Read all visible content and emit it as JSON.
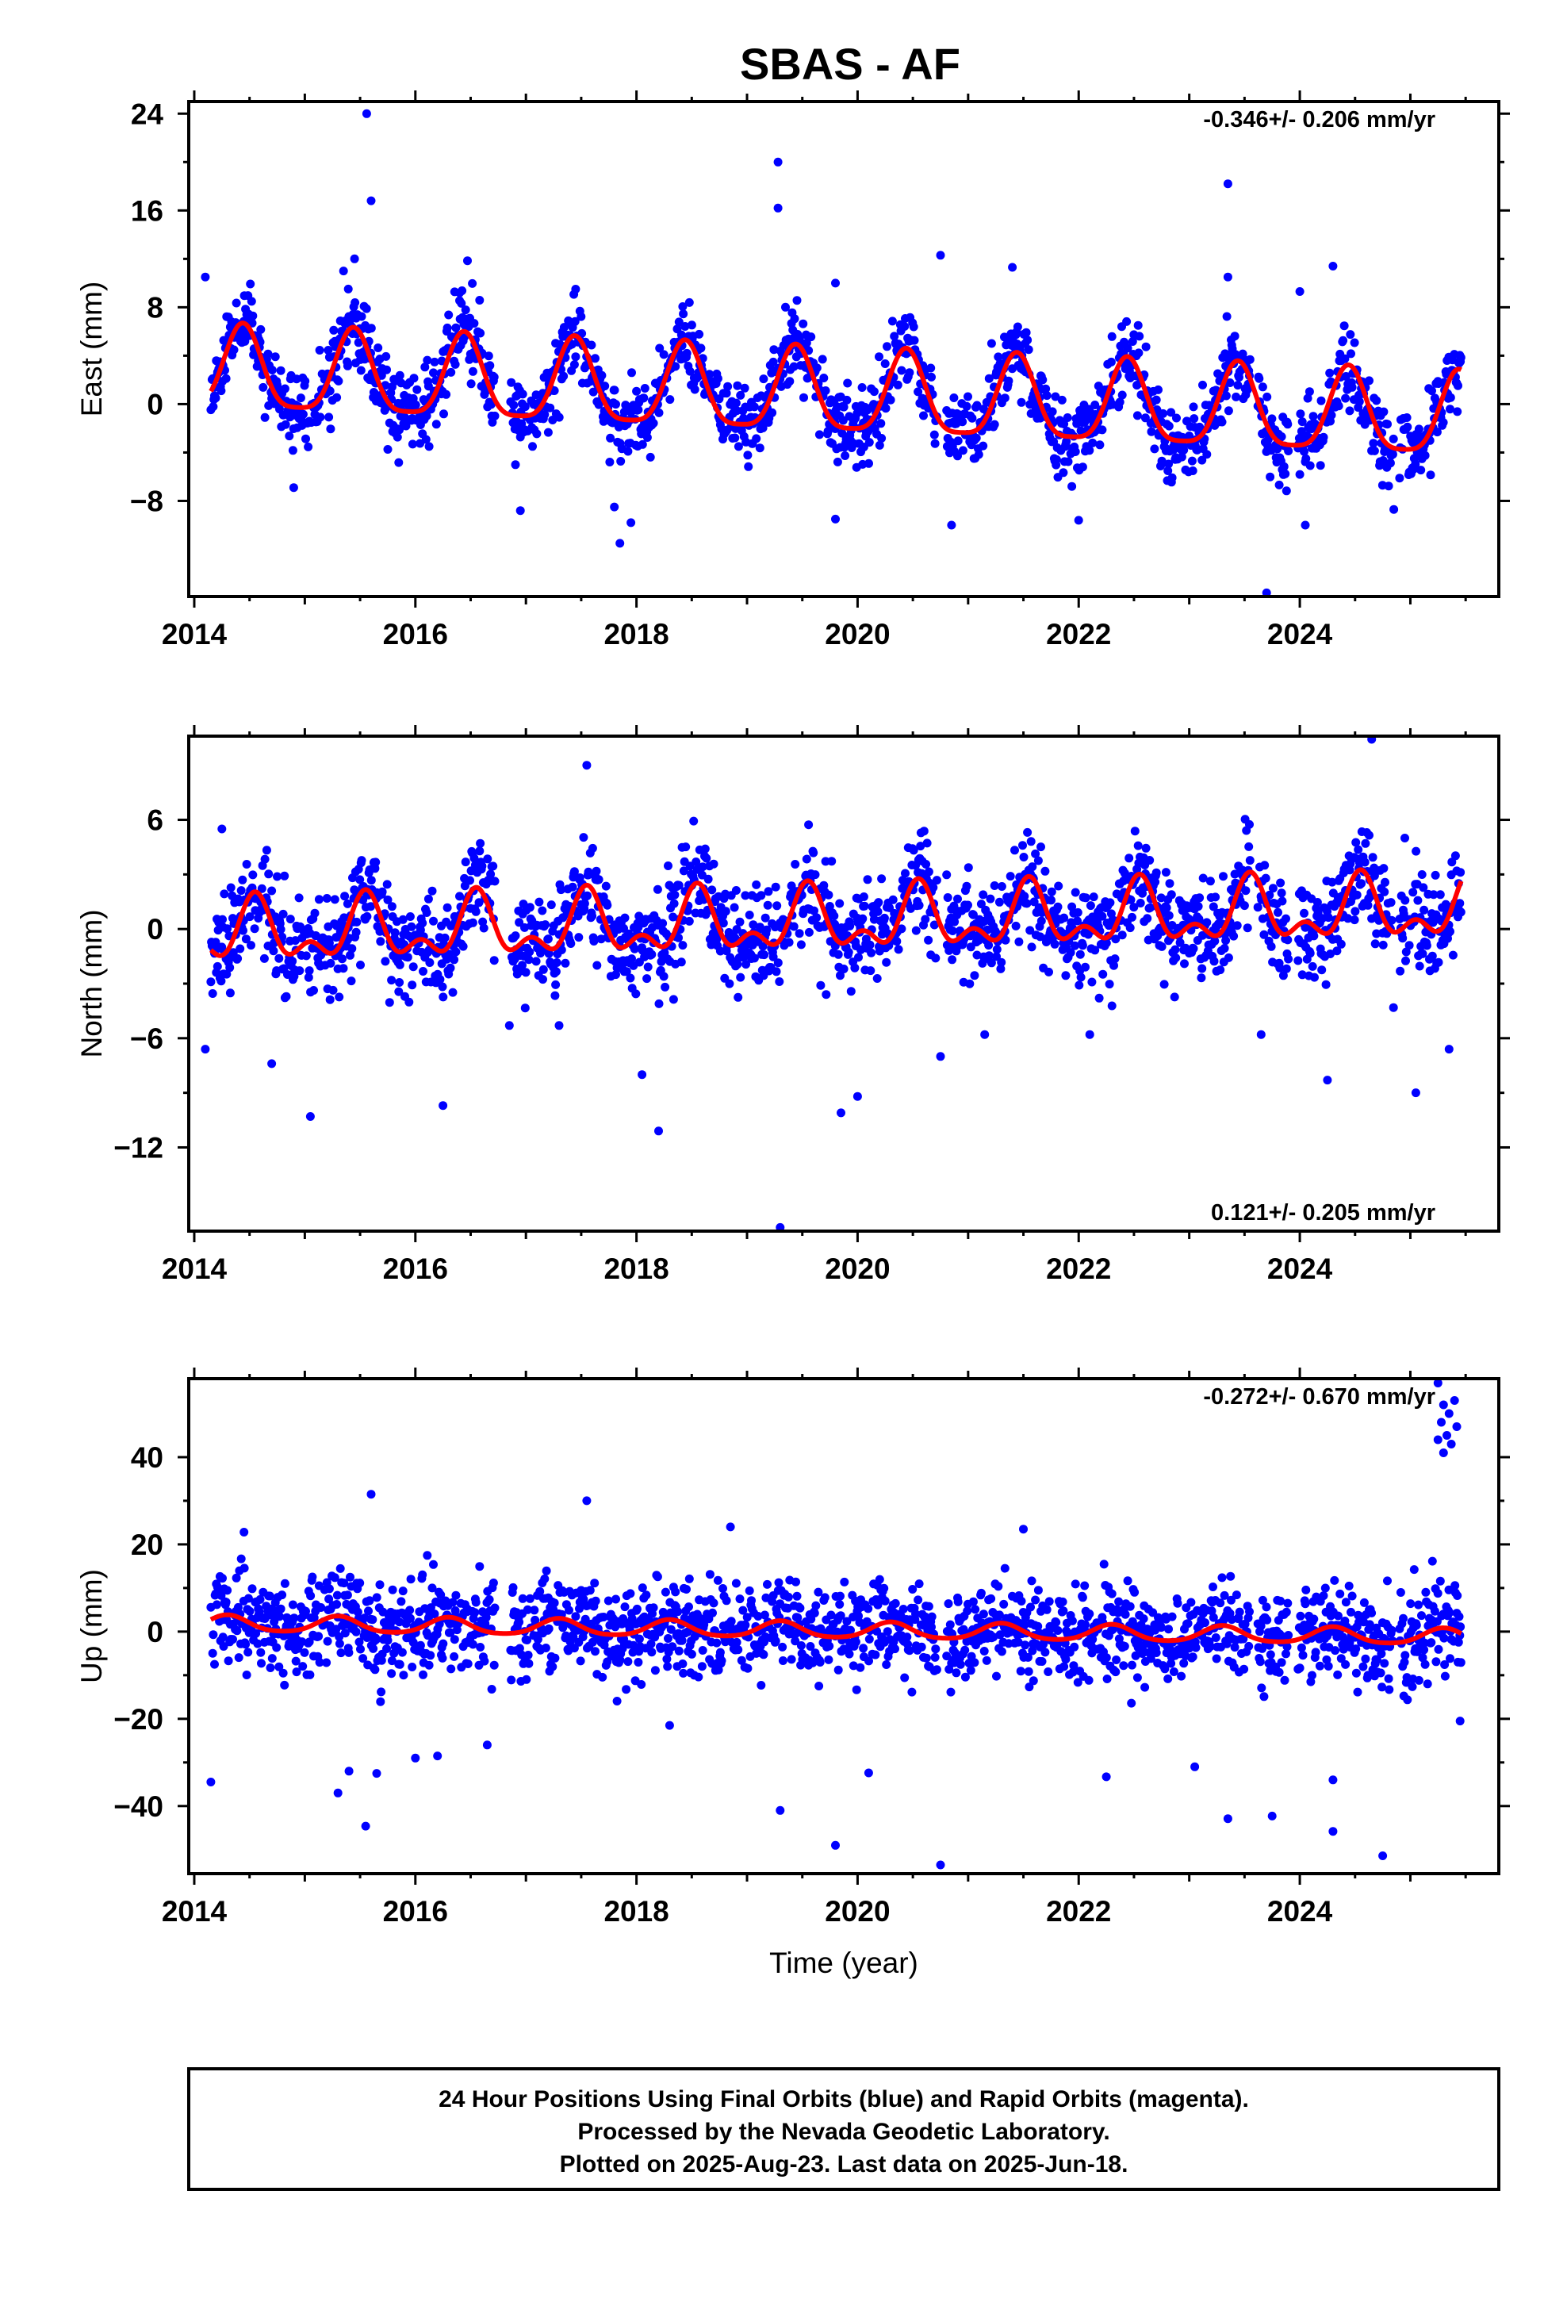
{
  "title": "SBAS - AF",
  "footer": {
    "line1": "24 Hour Positions Using Final Orbits (blue) and Rapid Orbits (magenta).",
    "line2": "Processed by the Nevada Geodetic Laboratory.",
    "line3": "Plotted on 2025-Aug-23. Last data on 2025-Jun-18."
  },
  "colors": {
    "final": "#0000ff",
    "rapid": "#ff00ff",
    "model": "#ff0000",
    "frame": "#000000"
  },
  "chart_data": [
    {
      "type": "scatter",
      "title": "",
      "xlabel": "",
      "ylabel": "East (mm)",
      "rate": "-0.346+/- 0.206 mm/yr",
      "rate_position": "top-right",
      "xlim": [
        2013.95,
        2025.8
      ],
      "ylim": [
        -15.9,
        25
      ],
      "xticks": [
        2014,
        2016,
        2018,
        2020,
        2022,
        2024
      ],
      "yticks": [
        24,
        16,
        8,
        0,
        -8
      ],
      "model": {
        "offset": 2.6,
        "rate": -0.346,
        "annual_amp": 3.4,
        "annual_peak": 2014.44,
        "semi_amp": 0.8,
        "semi_peak": 2014.44,
        "start": 2014.15,
        "end": 2025.46
      },
      "scatter": {
        "noise": 1.6,
        "step": 0.0055,
        "seed": 11
      },
      "outliers": [
        [
          2015.56,
          24
        ],
        [
          2015.6,
          16.8
        ],
        [
          2015.45,
          12
        ],
        [
          2014.1,
          10.5
        ],
        [
          2015.35,
          11
        ],
        [
          2019.28,
          20
        ],
        [
          2019.28,
          16.2
        ],
        [
          2019.8,
          10
        ],
        [
          2020.75,
          12.3
        ],
        [
          2021.4,
          11.3
        ],
        [
          2023.35,
          18.2
        ],
        [
          2023.35,
          10.5
        ],
        [
          2024.3,
          11.4
        ],
        [
          2024.0,
          9.3
        ],
        [
          2016.4,
          9.2
        ],
        [
          2017.45,
          9.5
        ],
        [
          2016.95,
          -8.8
        ],
        [
          2017.8,
          -8.5
        ],
        [
          2017.85,
          -11.5
        ],
        [
          2017.95,
          -9.8
        ],
        [
          2019.8,
          -9.5
        ],
        [
          2020.85,
          -10
        ],
        [
          2022.0,
          -9.6
        ],
        [
          2023.7,
          -15.6
        ],
        [
          2024.05,
          -10
        ],
        [
          2024.85,
          -8.7
        ],
        [
          2014.9,
          -6.9
        ]
      ]
    },
    {
      "type": "scatter",
      "title": "",
      "xlabel": "",
      "ylabel": "North (mm)",
      "rate": "0.121+/- 0.205 mm/yr",
      "rate_position": "bottom-right",
      "xlim": [
        2013.95,
        2025.8
      ],
      "ylim": [
        -16.6,
        10.6
      ],
      "xticks": [
        2014,
        2016,
        2018,
        2020,
        2022,
        2024
      ],
      "yticks": [
        6,
        0,
        -6,
        -12
      ],
      "model": {
        "offset": -0.3,
        "rate": 0.121,
        "annual_amp": 1.4,
        "annual_peak": 2014.55,
        "semi_amp": 0.9,
        "semi_peak": 2014.55,
        "start": 2014.15,
        "end": 2025.46
      },
      "scatter": {
        "noise": 1.35,
        "step": 0.0055,
        "seed": 23
      },
      "outliers": [
        [
          2017.55,
          9
        ],
        [
          2024.65,
          10.5
        ],
        [
          2014.25,
          5.5
        ],
        [
          2015.05,
          -10.3
        ],
        [
          2014.1,
          -6.6
        ],
        [
          2016.25,
          -9.7
        ],
        [
          2018.2,
          -11.1
        ],
        [
          2018.05,
          -8
        ],
        [
          2019.3,
          -16.4
        ],
        [
          2019.85,
          -10.1
        ],
        [
          2020.0,
          -9.2
        ],
        [
          2020.75,
          -7
        ],
        [
          2021.15,
          -5.8
        ],
        [
          2022.1,
          -5.8
        ],
        [
          2023.65,
          -5.8
        ],
        [
          2024.25,
          -8.3
        ],
        [
          2025.05,
          -9
        ],
        [
          2025.35,
          -6.6
        ],
        [
          2016.85,
          -5.3
        ],
        [
          2014.7,
          -7.4
        ],
        [
          2017.3,
          -5.3
        ],
        [
          2024.95,
          5
        ]
      ]
    },
    {
      "type": "scatter",
      "title": "",
      "xlabel": "Time (year)",
      "ylabel": "Up (mm)",
      "rate": "-0.272+/- 0.670 mm/yr",
      "rate_position": "top-right",
      "xlim": [
        2013.95,
        2025.8
      ],
      "ylim": [
        -55.5,
        58
      ],
      "xticks": [
        2014,
        2016,
        2018,
        2020,
        2022,
        2024
      ],
      "yticks": [
        40,
        20,
        0,
        -20,
        -40
      ],
      "model": {
        "offset": 1.8,
        "rate": -0.272,
        "annual_amp": 1.8,
        "annual_peak": 2014.3,
        "semi_amp": 0.3,
        "semi_peak": 2014.3,
        "start": 2014.15,
        "end": 2025.46
      },
      "scatter": {
        "noise": 5.2,
        "step": 0.0055,
        "seed": 37
      },
      "outliers": [
        [
          2015.6,
          31.5
        ],
        [
          2017.55,
          30
        ],
        [
          2014.15,
          -34.5
        ],
        [
          2015.3,
          -37
        ],
        [
          2015.4,
          -32
        ],
        [
          2015.55,
          -44.6
        ],
        [
          2015.65,
          -32.5
        ],
        [
          2016.0,
          -29
        ],
        [
          2016.2,
          -28.5
        ],
        [
          2016.65,
          -26
        ],
        [
          2019.3,
          -41
        ],
        [
          2019.8,
          -49
        ],
        [
          2020.1,
          -32.4
        ],
        [
          2020.75,
          -53.5
        ],
        [
          2022.25,
          -33.3
        ],
        [
          2023.05,
          -31
        ],
        [
          2023.35,
          -42.9
        ],
        [
          2023.75,
          -42.3
        ],
        [
          2024.3,
          -45.8
        ],
        [
          2024.75,
          -51.4
        ],
        [
          2024.3,
          -34
        ],
        [
          2018.3,
          -21.5
        ],
        [
          2025.45,
          -20.5
        ],
        [
          2018.85,
          24
        ],
        [
          2021.5,
          23.5
        ],
        [
          2014.45,
          22.8
        ],
        [
          2025.25,
          57
        ],
        [
          2025.3,
          52
        ],
        [
          2025.4,
          53
        ],
        [
          2025.28,
          48
        ],
        [
          2025.33,
          45
        ],
        [
          2025.37,
          43
        ],
        [
          2025.3,
          41
        ],
        [
          2025.42,
          47
        ],
        [
          2025.35,
          50
        ],
        [
          2025.25,
          44
        ]
      ]
    }
  ]
}
